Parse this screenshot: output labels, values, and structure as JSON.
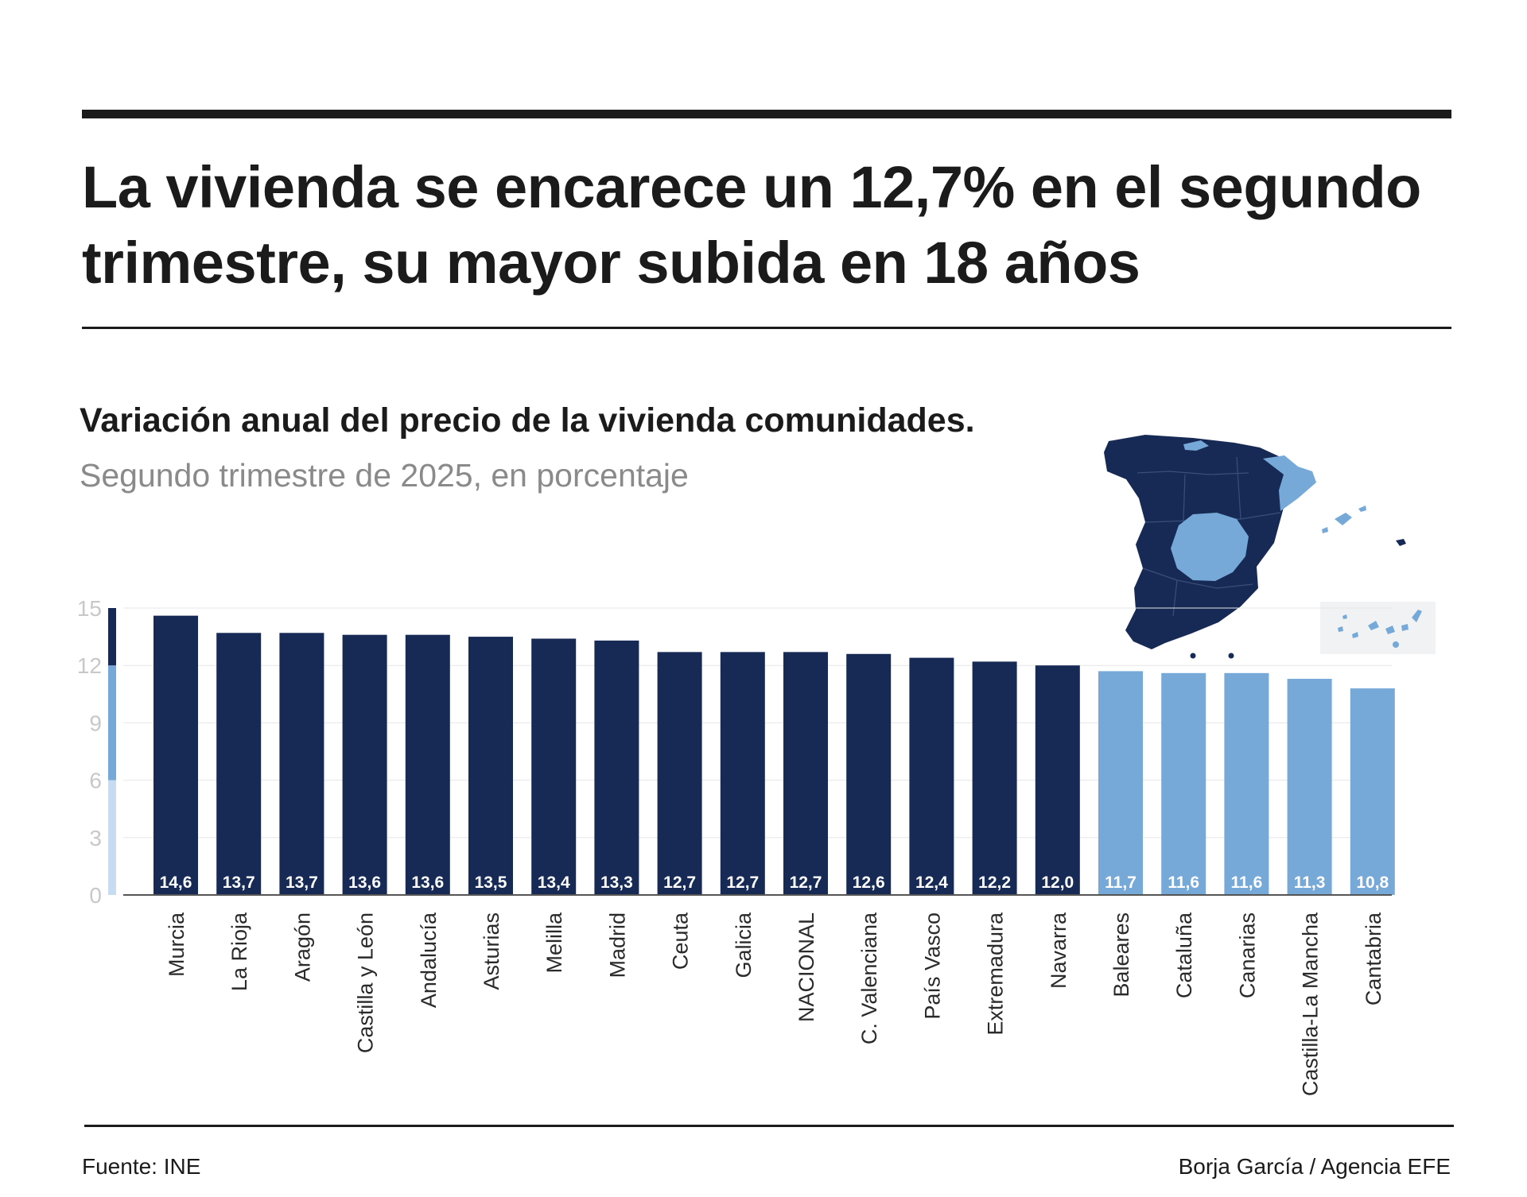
{
  "header": {
    "title": "La vivienda se encarece un 12,7% en el segundo trimestre, su mayor subida en 18 años"
  },
  "chart_data": {
    "type": "bar",
    "title": "Variación anual del precio de la vivienda comunidades.",
    "subtitle": "Segundo trimestre de 2025, en porcentaje",
    "xlabel": "",
    "ylabel": "",
    "ylim": [
      0,
      15
    ],
    "yticks": [
      "0",
      "3",
      "6",
      "9",
      "12",
      "15"
    ],
    "grid": true,
    "categories": [
      "Murcia",
      "La Rioja",
      "Aragón",
      "Castilla y León",
      "Andalucía",
      "Asturias",
      "Melilla",
      "Madrid",
      "Ceuta",
      "Galicia",
      "NACIONAL",
      "C. Valenciana",
      "País Vasco",
      "Extremadura",
      "Navarra",
      "Baleares",
      "Cataluña",
      "Canarias",
      "Castilla-La Mancha",
      "Cantabria"
    ],
    "values": [
      14.6,
      13.7,
      13.7,
      13.6,
      13.6,
      13.5,
      13.4,
      13.3,
      12.7,
      12.7,
      12.7,
      12.6,
      12.4,
      12.2,
      12.0,
      11.7,
      11.6,
      11.6,
      11.3,
      10.8
    ],
    "labels": [
      "14,6",
      "13,7",
      "13,7",
      "13,6",
      "13,6",
      "13,5",
      "13,4",
      "13,3",
      "12,7",
      "12,7",
      "12,7",
      "12,6",
      "12,4",
      "12,2",
      "12,0",
      "11,7",
      "11,6",
      "11,6",
      "11,3",
      "10,8"
    ],
    "color_threshold": 12,
    "colors": {
      "high": "#172a55",
      "low": "#76a9d8",
      "scale_top": "#172a55",
      "scale_mid": "#76a9d8",
      "scale_low": "#c7dcf1",
      "tick_text": "#c8c8c8",
      "grid": "#e6e6e6",
      "baseline": "#555555",
      "category_text": "#2a2a2a",
      "value_label": "#ffffff"
    }
  },
  "map": {
    "colors": {
      "high": "#172a55",
      "low": "#76a9d8",
      "inset_bg": "#f1f2f4"
    }
  },
  "footer": {
    "source": "Fuente: INE",
    "credit": "Borja García / Agencia EFE"
  }
}
